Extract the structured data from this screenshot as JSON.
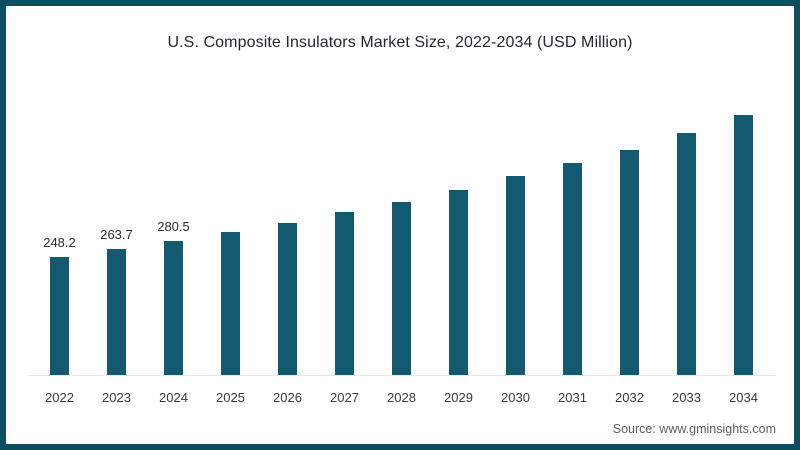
{
  "frame": {
    "border_color": "#0d4d62",
    "background": "#ffffff"
  },
  "chart_data": {
    "type": "bar",
    "title": "U.S. Composite Insulators Market Size, 2022-2034 (USD Million)",
    "unit": "USD Million",
    "categories": [
      "2022",
      "2023",
      "2024",
      "2025",
      "2026",
      "2027",
      "2028",
      "2029",
      "2030",
      "2031",
      "2032",
      "2033",
      "2034"
    ],
    "values": [
      248.2,
      263.7,
      280.5,
      299.2,
      318.1,
      341.0,
      362.0,
      388.0,
      416.4,
      444.6,
      471.9,
      507.5,
      545.8
    ],
    "data_labels": [
      "248.2",
      "263.7",
      "280.5",
      "",
      "",
      "",
      "",
      "",
      "",
      "",
      "",
      "",
      ""
    ],
    "bar_color": "#135a70",
    "xlabel": "",
    "ylabel": "",
    "ylim": [
      0,
      560
    ],
    "grid": false,
    "legend_position": "none"
  },
  "footer": {
    "source": "Source: www.gminsights.com"
  }
}
